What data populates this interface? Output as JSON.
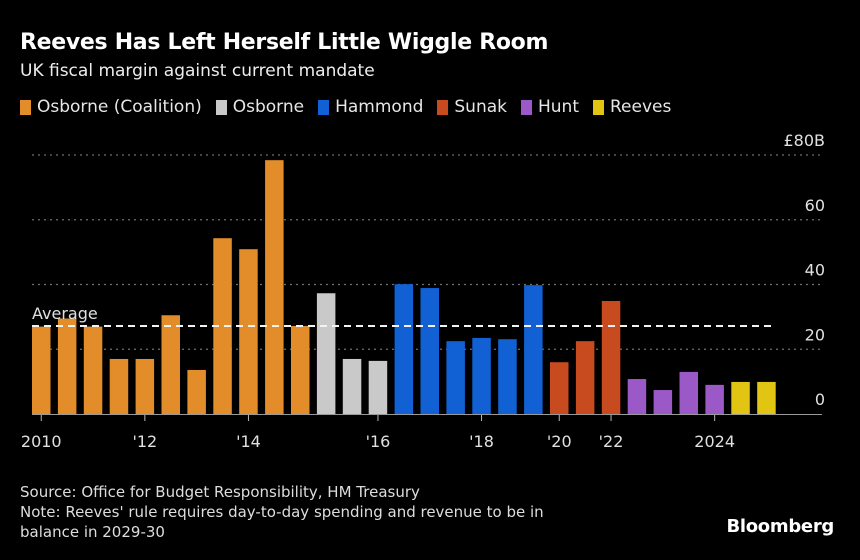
{
  "header": {
    "title": "Reeves Has Left Herself Little Wiggle Room",
    "subtitle": "UK fiscal margin against current mandate"
  },
  "legend": [
    {
      "label": "Osborne (Coalition)",
      "color": "#E38D2A"
    },
    {
      "label": "Osborne",
      "color": "#C9C9C9"
    },
    {
      "label": "Hammond",
      "color": "#1161D4"
    },
    {
      "label": "Sunak",
      "color": "#C84B20"
    },
    {
      "label": "Hunt",
      "color": "#9A59C6"
    },
    {
      "label": "Reeves",
      "color": "#E2C412"
    }
  ],
  "chart_data": {
    "type": "bar",
    "title": "Reeves Has Left Herself Little Wiggle Room",
    "subtitle": "UK fiscal margin against current mandate",
    "xlabel": "",
    "ylabel": "£B",
    "ylim": [
      0,
      80
    ],
    "y_ticks": [
      0,
      20,
      40,
      60,
      80
    ],
    "y_tick_labels": [
      "0",
      "20",
      "40",
      "60",
      "£80B"
    ],
    "grid": true,
    "legend_position": "top-left",
    "x_tick_labels": [
      {
        "bar_index": 0,
        "label": "2010"
      },
      {
        "bar_index": 4,
        "label": "'12"
      },
      {
        "bar_index": 8,
        "label": "'14"
      },
      {
        "bar_index": 13,
        "label": "'16"
      },
      {
        "bar_index": 17,
        "label": "'18"
      },
      {
        "bar_index": 20,
        "label": "'20"
      },
      {
        "bar_index": 22,
        "label": "'22"
      },
      {
        "bar_index": 26,
        "label": "2024"
      }
    ],
    "average": {
      "label": "Average",
      "value": 27.2
    },
    "bars": [
      {
        "series": "Osborne (Coalition)",
        "value": 27
      },
      {
        "series": "Osborne (Coalition)",
        "value": 29.5
      },
      {
        "series": "Osborne (Coalition)",
        "value": 27
      },
      {
        "series": "Osborne (Coalition)",
        "value": 17
      },
      {
        "series": "Osborne (Coalition)",
        "value": 17
      },
      {
        "series": "Osborne (Coalition)",
        "value": 30.5
      },
      {
        "series": "Osborne (Coalition)",
        "value": 13.6
      },
      {
        "series": "Osborne (Coalition)",
        "value": 54.3
      },
      {
        "series": "Osborne (Coalition)",
        "value": 50.9
      },
      {
        "series": "Osborne (Coalition)",
        "value": 78.4
      },
      {
        "series": "Osborne (Coalition)",
        "value": 27.2
      },
      {
        "series": "Osborne",
        "value": 37.3
      },
      {
        "series": "Osborne",
        "value": 17
      },
      {
        "series": "Osborne",
        "value": 16.4
      },
      {
        "series": "Hammond",
        "value": 40.1
      },
      {
        "series": "Hammond",
        "value": 38.9
      },
      {
        "series": "Hammond",
        "value": 22.5
      },
      {
        "series": "Hammond",
        "value": 23.5
      },
      {
        "series": "Hammond",
        "value": 23.1
      },
      {
        "series": "Hammond",
        "value": 39.8
      },
      {
        "series": "Sunak",
        "value": 16
      },
      {
        "series": "Sunak",
        "value": 22.5
      },
      {
        "series": "Sunak",
        "value": 34.9
      },
      {
        "series": "Hunt",
        "value": 10.8
      },
      {
        "series": "Hunt",
        "value": 7.4
      },
      {
        "series": "Hunt",
        "value": 13
      },
      {
        "series": "Hunt",
        "value": 9
      },
      {
        "series": "Reeves",
        "value": 9.9
      },
      {
        "series": "Reeves",
        "value": 9.9
      }
    ]
  },
  "footer": {
    "source": "Source: Office for Budget Responsibility, HM Treasury",
    "note_line1": "Note: Reeves' rule requires day-to-day spending and revenue to be in",
    "note_line2": "balance in 2029-30",
    "logo": "Bloomberg"
  }
}
